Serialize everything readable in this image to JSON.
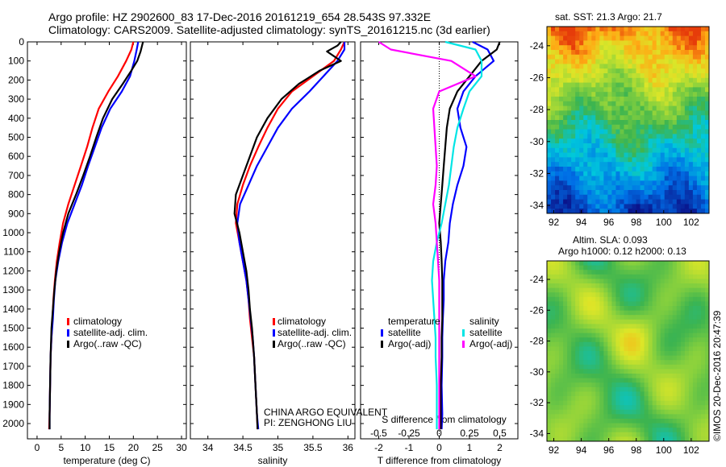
{
  "title_line1": "Argo profile: HZ 2902600_83 17-Dec-2016 20161219_654 28.543S 97.332E",
  "title_line2": "Climatology: CARS2009. Satellite-adjusted climatology: synTS_20161215.nc (3d earlier)",
  "colors": {
    "climatology": "#ff0000",
    "satellite": "#0000ff",
    "argo": "#000000",
    "sal_satellite": "#00e5e5",
    "sal_argo": "#ff00ff"
  },
  "chart_data": [
    {
      "type": "line",
      "xlabel": "temperature (deg C)",
      "ylabel": "",
      "xlim": [
        -2,
        31
      ],
      "ylim": [
        2080,
        0
      ],
      "xticks": [
        0,
        5,
        10,
        15,
        20,
        25,
        30
      ],
      "yticks": [
        0,
        100,
        200,
        300,
        400,
        500,
        600,
        700,
        800,
        900,
        1000,
        1100,
        1200,
        1300,
        1400,
        1500,
        1600,
        1700,
        1800,
        1900,
        2000
      ],
      "legend": [
        "climatology",
        "satellite-adj. clim.",
        "Argo(..raw -QC)"
      ],
      "series": [
        {
          "name": "climatology",
          "color": "#ff0000",
          "x": [
            20.0,
            19.6,
            18.5,
            16.8,
            14.8,
            12.8,
            11.5,
            10.4,
            9.1,
            7.8,
            6.5,
            5.4,
            4.7,
            4.1,
            3.7,
            3.4,
            3.2,
            3.0,
            2.8,
            2.7,
            2.6,
            2.5
          ],
          "y": [
            0,
            40,
            100,
            180,
            260,
            350,
            450,
            550,
            650,
            750,
            850,
            950,
            1050,
            1150,
            1250,
            1350,
            1450,
            1550,
            1650,
            1800,
            1950,
            2030
          ]
        },
        {
          "name": "satellite-adj. clim.",
          "color": "#0000ff",
          "x": [
            21.0,
            20.7,
            20.2,
            19.3,
            17.6,
            15.2,
            13.4,
            12.0,
            10.6,
            9.3,
            7.8,
            6.3,
            5.2,
            4.4,
            3.8,
            3.5,
            3.3,
            3.0,
            2.8,
            2.7,
            2.6,
            2.6
          ],
          "y": [
            0,
            40,
            100,
            180,
            260,
            350,
            450,
            550,
            650,
            750,
            850,
            950,
            1050,
            1150,
            1250,
            1350,
            1450,
            1550,
            1650,
            1800,
            1950,
            2030
          ]
        },
        {
          "name": "Argo(..raw -QC)",
          "color": "#000000",
          "x": [
            22.0,
            21.8,
            21.5,
            20.8,
            19.6,
            17.8,
            15.6,
            13.7,
            12.3,
            11.0,
            9.6,
            8.1,
            6.5,
            5.4,
            4.6,
            4.0,
            3.6,
            3.3,
            3.0,
            2.8,
            2.7,
            2.6,
            2.6
          ],
          "y": [
            0,
            20,
            50,
            100,
            150,
            220,
            300,
            400,
            500,
            600,
            700,
            800,
            900,
            1000,
            1100,
            1200,
            1300,
            1400,
            1500,
            1650,
            1800,
            1950,
            2030
          ]
        }
      ]
    },
    {
      "type": "line",
      "xlabel": "salinity",
      "ylabel": "",
      "xlim": [
        33.75,
        36.1
      ],
      "ylim": [
        2080,
        0
      ],
      "xticks": [
        34,
        34.5,
        35,
        35.5,
        36
      ],
      "legend": [
        "climatology",
        "satellite-adj. clim.",
        "Argo(..raw -QC)"
      ],
      "series": [
        {
          "name": "climatology",
          "color": "#ff0000",
          "x": [
            35.95,
            35.9,
            35.8,
            35.5,
            35.2,
            35.0,
            34.85,
            34.72,
            34.6,
            34.5,
            34.42,
            34.4,
            34.45,
            34.5,
            34.55,
            34.58,
            34.6,
            34.63,
            34.66,
            34.68,
            34.7,
            34.71
          ],
          "y": [
            0,
            40,
            100,
            180,
            260,
            350,
            450,
            550,
            650,
            750,
            850,
            950,
            1050,
            1150,
            1250,
            1350,
            1450,
            1550,
            1650,
            1800,
            1950,
            2030
          ]
        },
        {
          "name": "satellite-adj. clim.",
          "color": "#0000ff",
          "x": [
            35.95,
            35.95,
            35.85,
            35.65,
            35.45,
            35.2,
            35.0,
            34.85,
            34.7,
            34.58,
            34.46,
            34.42,
            34.45,
            34.5,
            34.55,
            34.58,
            34.61,
            34.64,
            34.66,
            34.68,
            34.7,
            34.72
          ],
          "y": [
            0,
            40,
            100,
            180,
            260,
            350,
            450,
            550,
            650,
            750,
            850,
            950,
            1050,
            1150,
            1250,
            1350,
            1450,
            1550,
            1650,
            1800,
            1950,
            2030
          ]
        },
        {
          "name": "Argo(..raw -QC)",
          "color": "#000000",
          "x": [
            35.9,
            35.85,
            35.7,
            35.9,
            35.6,
            35.3,
            35.05,
            34.85,
            34.7,
            34.6,
            34.5,
            34.4,
            34.38,
            34.45,
            34.5,
            34.55,
            34.58,
            34.6,
            34.63,
            34.66,
            34.68,
            34.7,
            34.71
          ],
          "y": [
            0,
            20,
            50,
            100,
            150,
            220,
            300,
            400,
            500,
            600,
            700,
            800,
            900,
            1000,
            1100,
            1200,
            1300,
            1400,
            1500,
            1650,
            1800,
            1950,
            2030
          ]
        }
      ]
    },
    {
      "type": "line",
      "xlabel": "T difference from climatology",
      "xlabel_top": "S difference from climatology",
      "xlim": [
        -2.6,
        2.6
      ],
      "ylim": [
        2080,
        0
      ],
      "xticks": [
        -2,
        -1,
        0,
        1,
        2
      ],
      "xticks_top": [
        -0.5,
        -0.25,
        0,
        0.25,
        0.5
      ],
      "xticks_top_labels": [
        "-0.5",
        "-0.25",
        "0",
        "0.25",
        "0.5"
      ],
      "legend_temperature_title": "temperature",
      "legend_salinity_title": "salinity",
      "legend_temperature": [
        "satellite",
        "Argo(-adj)"
      ],
      "legend_salinity": [
        "satellite",
        "Argo(-adj)"
      ],
      "series": [
        {
          "name": "temperature satellite",
          "color": "#0000ff",
          "x": [
            1.1,
            1.6,
            1.8,
            1.2,
            0.8,
            0.6,
            0.7,
            0.9,
            0.8,
            0.6,
            0.45,
            0.35,
            0.3,
            0.2,
            0.15,
            0.15,
            0.12,
            0.1,
            0.1,
            0.08,
            0.1,
            0.08
          ],
          "y": [
            0,
            40,
            100,
            180,
            260,
            350,
            450,
            550,
            650,
            750,
            850,
            950,
            1050,
            1150,
            1250,
            1350,
            1450,
            1550,
            1650,
            1800,
            1950,
            2030
          ]
        },
        {
          "name": "temperature Argo(-adj)",
          "color": "#000000",
          "x": [
            2.0,
            1.9,
            1.4,
            1.0,
            0.6,
            0.35,
            0.25,
            0.2,
            0.15,
            0.1,
            0.05,
            0.0,
            0.05,
            0.08,
            0.1,
            0.1,
            0.1,
            0.08,
            0.08,
            0.05,
            0.05,
            0.05
          ],
          "y": [
            0,
            40,
            100,
            180,
            260,
            350,
            450,
            550,
            650,
            750,
            850,
            950,
            1050,
            1150,
            1250,
            1350,
            1450,
            1550,
            1650,
            1800,
            1950,
            2030
          ]
        },
        {
          "name": "salinity satellite",
          "color": "#00e5e5",
          "x": [
            0.05,
            0.3,
            0.35,
            0.35,
            0.25,
            0.2,
            0.15,
            0.12,
            0.1,
            0.08,
            0.05,
            0.02,
            -0.02,
            -0.05,
            -0.06,
            -0.05,
            -0.04,
            -0.03,
            -0.03,
            -0.02,
            -0.02,
            -0.02
          ],
          "y": [
            0,
            40,
            100,
            180,
            260,
            350,
            450,
            550,
            650,
            750,
            850,
            950,
            1050,
            1150,
            1250,
            1350,
            1450,
            1550,
            1650,
            1800,
            1950,
            2030
          ]
        },
        {
          "name": "salinity Argo(-adj)",
          "color": "#ff00ff",
          "x": [
            -0.5,
            -0.4,
            0.1,
            0.3,
            0.0,
            -0.05,
            -0.04,
            -0.03,
            -0.02,
            -0.03,
            -0.05,
            -0.03,
            -0.02,
            -0.01,
            0.0,
            0.0,
            0.0,
            0.0,
            0.0,
            0.0,
            0.0,
            0.0
          ],
          "y": [
            0,
            40,
            100,
            180,
            260,
            350,
            450,
            550,
            650,
            750,
            850,
            950,
            1050,
            1150,
            1250,
            1350,
            1450,
            1550,
            1650,
            1800,
            1950,
            2030
          ]
        }
      ]
    },
    {
      "type": "heatmap",
      "title": "sat. SST: 21.3 Argo: 21.7",
      "xticks": [
        92,
        94,
        96,
        98,
        100,
        102
      ],
      "yticks": [
        -24,
        -26,
        -28,
        -30,
        -32,
        -34
      ],
      "xlim": [
        91.5,
        103.3
      ],
      "ylim": [
        -34.5,
        -22.8
      ]
    },
    {
      "type": "heatmap",
      "title": "Altim. SLA: 0.093",
      "subtitle": "Argo h1000: 0.12 h2000: 0.13",
      "xticks": [
        92,
        94,
        96,
        98,
        100,
        102
      ],
      "yticks": [
        -24,
        -26,
        -28,
        -30,
        -32,
        -34
      ],
      "xlim": [
        91.5,
        103.3
      ],
      "ylim": [
        -34.5,
        -22.8
      ]
    }
  ],
  "panel_legend": {
    "climatology": "climatology",
    "satellite": "satellite-adj. clim.",
    "argo": "Argo(..raw -QC)"
  },
  "pi_text_1": "CHINA ARGO EQUIVALENT",
  "pi_text_2": "PI: ZENGHONG LIU",
  "footer_credit": "©IMOS 20-Dec-2016 20:47:39"
}
